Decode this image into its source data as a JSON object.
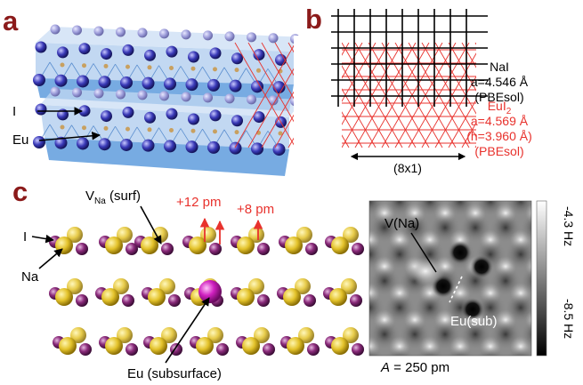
{
  "panels": {
    "a": {
      "label": "a",
      "atom_labels": {
        "iodine": "I",
        "europium": "Eu"
      }
    },
    "b": {
      "label": "b",
      "nai": {
        "title": "NaI",
        "lattice": "a=4.546 Å",
        "method": "(PBEsol)"
      },
      "eui2": {
        "title": "EuI",
        "title_sub": "2",
        "lattice": "a=4.569 Å",
        "height": "(h=3.960 Å)",
        "method": "(PBEsol)"
      },
      "supercell": "(8x1)"
    },
    "c": {
      "label": "c",
      "vacancy": {
        "main": "V",
        "sub": "Na",
        "rest": " (surf)"
      },
      "shift_left": "+12 pm",
      "shift_right": "+8 pm",
      "labels": {
        "iodine": "I",
        "sodium": "Na",
        "europium": "Eu (subsurface)"
      },
      "afm": {
        "label_vacancy": "V(Na)",
        "label_eu": "Eu(sub)",
        "colorbar_top": "-4.3 Hz",
        "colorbar_bottom": "-8.5 Hz",
        "amplitude_symbol": "A",
        "amplitude_value": " = 250 pm"
      }
    }
  },
  "colors": {
    "panel_label": "#8b1a1a",
    "red_annotation": "#e8322d",
    "iodine_atom": "#8a2a7a",
    "sodium_atom": "#e8c830",
    "europium_atom": "#d020c0",
    "octahedra": "#4a8fd8"
  }
}
